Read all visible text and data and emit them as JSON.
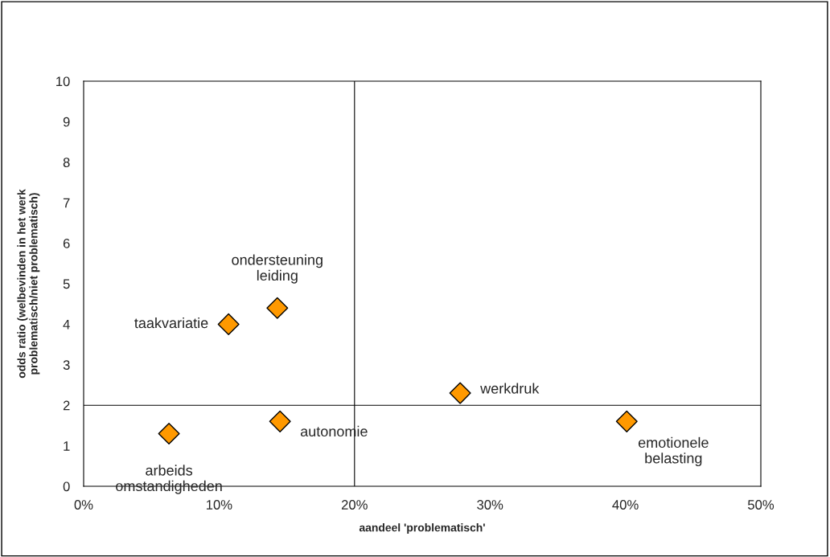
{
  "chart_data": {
    "type": "scatter",
    "xlabel": "aandeel 'problematisch'",
    "ylabel": "odds ratio (welbevinden in het werk\nproblematisch/niet problematisch)",
    "series": [
      {
        "color": "#ff9900",
        "x": [
          6.3,
          10.7,
          14.3,
          14.5,
          27.8,
          40.1
        ],
        "values": [
          1.3,
          4.0,
          4.4,
          1.6,
          2.3,
          1.6
        ]
      }
    ],
    "xlim": [
      0,
      50
    ],
    "xticks": [
      {
        "value": 0,
        "label": "0%"
      },
      {
        "value": 10,
        "label": "10%"
      },
      {
        "value": 20,
        "label": "20%"
      },
      {
        "value": 30,
        "label": "30%"
      },
      {
        "value": 40,
        "label": "40%"
      },
      {
        "value": 50,
        "label": "50%"
      }
    ],
    "ylim": [
      0,
      10
    ],
    "yticks": [
      0,
      1,
      2,
      3,
      4,
      5,
      6,
      7,
      8,
      9,
      10
    ],
    "ref_lines": [
      {
        "axis": "x",
        "value": 20,
        "color": "#000000"
      },
      {
        "axis": "y",
        "value": 2,
        "color": "#000000"
      }
    ],
    "annotations": [
      {
        "text": "arbeids\nomstandigheden",
        "x": 6.3,
        "y": 1.3
      },
      {
        "text": "taakvariatie",
        "x": 10.7,
        "y": 4.0
      },
      {
        "text": "ondersteuning\nleiding",
        "x": 14.3,
        "y": 4.4
      },
      {
        "text": "autonomie",
        "x": 14.5,
        "y": 1.6
      },
      {
        "text": "werkdruk",
        "x": 27.8,
        "y": 2.3
      },
      {
        "text": "emotionele\nbelasting",
        "x": 40.1,
        "y": 1.6
      }
    ],
    "marker": "diamond",
    "grid": false,
    "legend": false
  }
}
